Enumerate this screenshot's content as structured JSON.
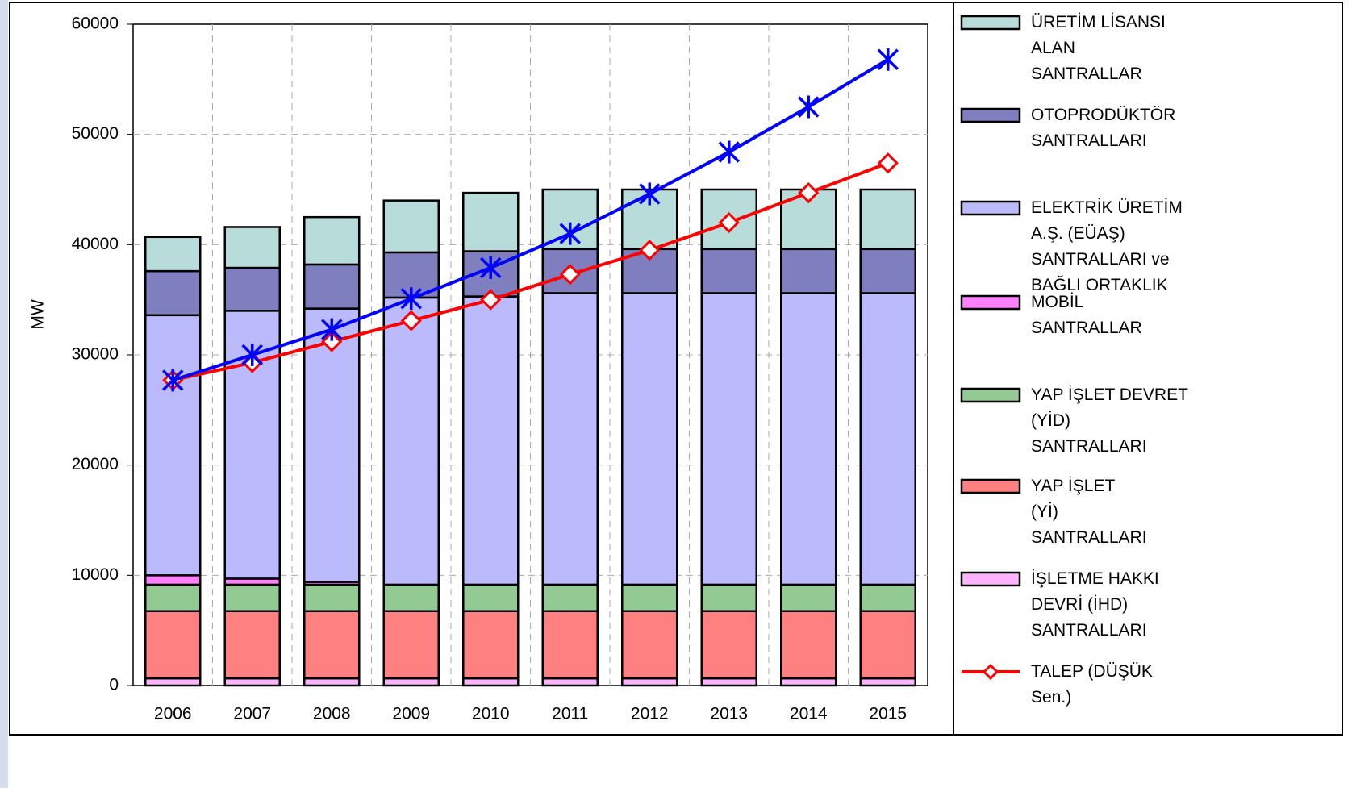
{
  "chart_data": {
    "type": "stacked-bar-line",
    "y_label": "MW",
    "categories": [
      "2006",
      "2007",
      "2008",
      "2009",
      "2010",
      "2011",
      "2012",
      "2013",
      "2014",
      "2015"
    ],
    "ylim": [
      0,
      60000
    ],
    "yticks": [
      0,
      10000,
      20000,
      30000,
      40000,
      50000,
      60000
    ],
    "grid": true,
    "series": [
      {
        "name": "İŞLETME HAKKI\nDEVRİ (İHD)\nSANTRALLARI",
        "kind": "bar",
        "color": "#ffb3ff",
        "values": [
          650,
          650,
          650,
          650,
          650,
          650,
          650,
          650,
          650,
          650
        ]
      },
      {
        "name": "YAP İŞLET\n(Yİ)\nSANTRALLARI",
        "kind": "bar",
        "color": "#ff8080",
        "values": [
          6100,
          6100,
          6100,
          6100,
          6100,
          6100,
          6100,
          6100,
          6100,
          6100
        ]
      },
      {
        "name": "YAP İŞLET DEVRET\n(YİD)\nSANTRALLARI",
        "kind": "bar",
        "color": "#93c993",
        "values": [
          2400,
          2400,
          2400,
          2400,
          2400,
          2400,
          2400,
          2400,
          2400,
          2400
        ]
      },
      {
        "name": "MOBİL\nSANTRALLAR",
        "kind": "bar",
        "color": "#ff80ff",
        "values": [
          850,
          550,
          250,
          0,
          0,
          0,
          0,
          0,
          0,
          0
        ]
      },
      {
        "name": "ELEKTRİK ÜRETİM\nA.Ş. (EÜAŞ)\nSANTRALLARI ve\nBAĞLI ORTAKLIK",
        "kind": "bar",
        "color": "#babafc",
        "values": [
          23600,
          24300,
          24800,
          26050,
          26150,
          26450,
          26450,
          26450,
          26450,
          26450
        ]
      },
      {
        "name": "OTOPRODÜKTÖR\nSANTRALLARI",
        "kind": "bar",
        "color": "#7f7fbf",
        "values": [
          4000,
          3900,
          4000,
          4100,
          4100,
          4000,
          4000,
          4000,
          4000,
          4000
        ]
      },
      {
        "name": "ÜRETİM LİSANSI\nALAN\nSANTRALLAR",
        "kind": "bar",
        "color": "#b7dcd9",
        "values": [
          3100,
          3700,
          4300,
          4700,
          5300,
          5400,
          5400,
          5400,
          5400,
          5400
        ]
      },
      {
        "name": "TALEP (DÜŞÜK\nSen.)",
        "kind": "line",
        "marker": "diamond",
        "color": "#ff0000",
        "values": [
          27700,
          29300,
          31200,
          33100,
          35000,
          37300,
          39500,
          42000,
          44700,
          47400
        ]
      },
      {
        "kind": "line",
        "marker": "star",
        "color": "#0000ff",
        "values": [
          27700,
          30000,
          32300,
          35100,
          37900,
          41000,
          44600,
          48400,
          52500,
          56800
        ]
      }
    ]
  }
}
